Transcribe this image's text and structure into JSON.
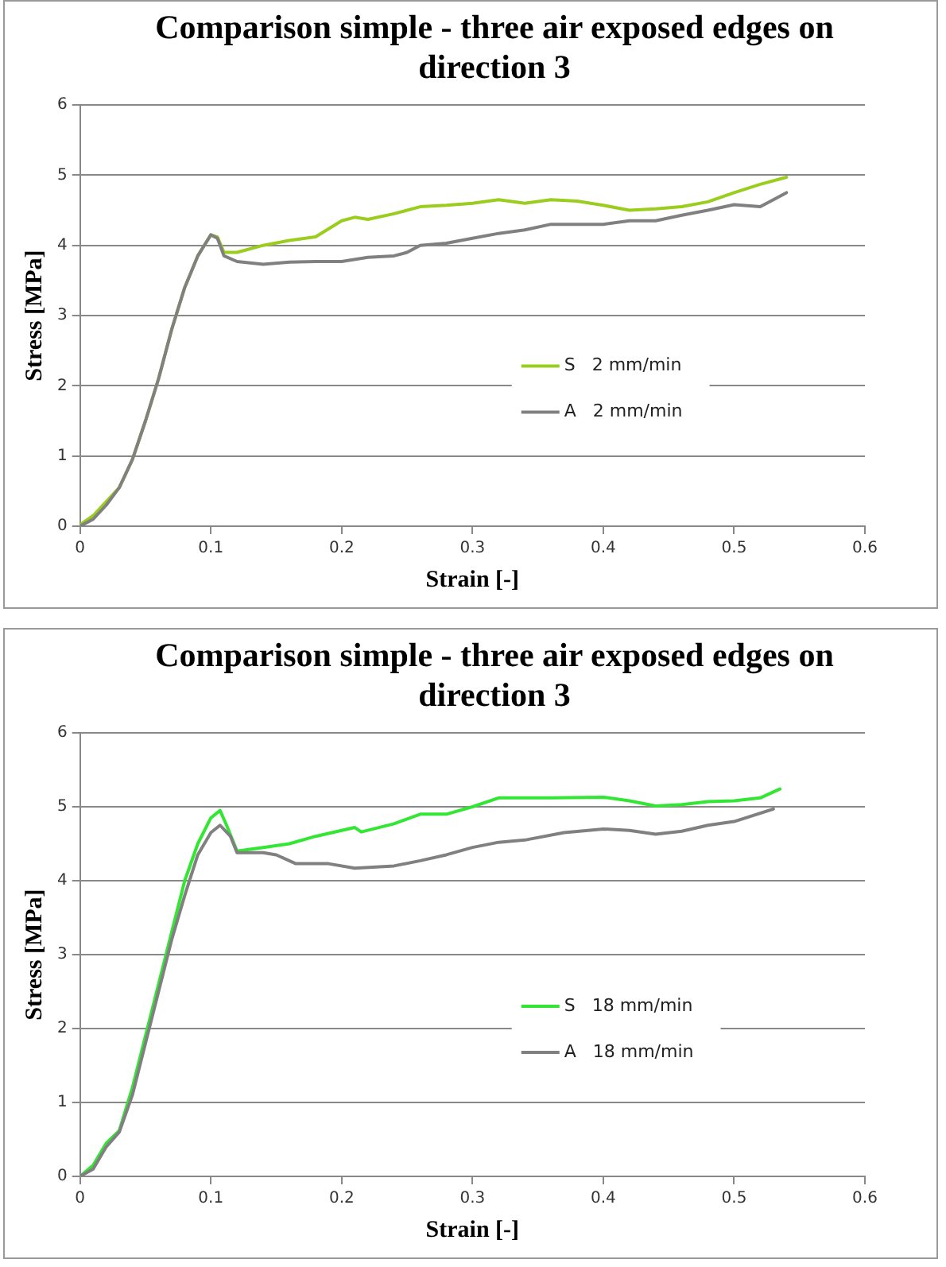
{
  "chart_data": [
    {
      "type": "line",
      "title": "Comparison simple - three air exposed edges on direction 3",
      "xlabel": "Strain [-]",
      "ylabel": "Stress [MPa]",
      "xlim": [
        0,
        0.6
      ],
      "xticks": [
        0,
        0.1,
        0.2,
        0.3,
        0.4,
        0.5,
        0.6
      ],
      "ylim": [
        0,
        6
      ],
      "yticks": [
        0,
        1,
        2,
        3,
        4,
        5,
        6
      ],
      "grid": "y",
      "legend": "right",
      "marker": "none",
      "line_style": "solid",
      "series": [
        {
          "name": "S   2 mm/min",
          "color": "#9acd1e",
          "x": [
            0,
            0.01,
            0.02,
            0.03,
            0.04,
            0.05,
            0.06,
            0.07,
            0.08,
            0.09,
            0.1,
            0.105,
            0.11,
            0.12,
            0.14,
            0.16,
            0.18,
            0.2,
            0.21,
            0.22,
            0.24,
            0.26,
            0.28,
            0.3,
            0.32,
            0.34,
            0.36,
            0.38,
            0.4,
            0.42,
            0.44,
            0.46,
            0.48,
            0.5,
            0.52,
            0.54
          ],
          "values": [
            0.02,
            0.15,
            0.35,
            0.55,
            0.95,
            1.5,
            2.1,
            2.8,
            3.4,
            3.85,
            4.15,
            4.12,
            3.9,
            3.9,
            4.0,
            4.07,
            4.12,
            4.35,
            4.4,
            4.37,
            4.45,
            4.55,
            4.57,
            4.6,
            4.65,
            4.6,
            4.65,
            4.63,
            4.57,
            4.5,
            4.52,
            4.55,
            4.62,
            4.75,
            4.87,
            4.97
          ]
        },
        {
          "name": "A   2 mm/min",
          "color": "#808080",
          "x": [
            0,
            0.01,
            0.02,
            0.03,
            0.04,
            0.05,
            0.06,
            0.07,
            0.08,
            0.09,
            0.1,
            0.105,
            0.11,
            0.12,
            0.14,
            0.16,
            0.18,
            0.2,
            0.22,
            0.24,
            0.25,
            0.26,
            0.28,
            0.3,
            0.32,
            0.34,
            0.36,
            0.38,
            0.4,
            0.42,
            0.44,
            0.46,
            0.48,
            0.5,
            0.52,
            0.54
          ],
          "values": [
            0,
            0.1,
            0.3,
            0.55,
            0.95,
            1.5,
            2.1,
            2.8,
            3.4,
            3.85,
            4.15,
            4.1,
            3.85,
            3.77,
            3.73,
            3.76,
            3.77,
            3.77,
            3.83,
            3.85,
            3.9,
            4.0,
            4.03,
            4.1,
            4.17,
            4.22,
            4.3,
            4.3,
            4.3,
            4.35,
            4.35,
            4.43,
            4.5,
            4.58,
            4.55,
            4.75
          ]
        }
      ]
    },
    {
      "type": "line",
      "title": "Comparison simple - three air exposed edges on direction 3",
      "xlabel": "Strain [-]",
      "ylabel": "Stress [MPa]",
      "xlim": [
        0,
        0.6
      ],
      "xticks": [
        0,
        0.1,
        0.2,
        0.3,
        0.4,
        0.5,
        0.6
      ],
      "ylim": [
        0,
        6
      ],
      "yticks": [
        0,
        1,
        2,
        3,
        4,
        5,
        6
      ],
      "grid": "y",
      "legend": "right",
      "marker": "none",
      "line_style": "solid",
      "series": [
        {
          "name": "S   18 mm/min",
          "color": "#33e633",
          "x": [
            0,
            0.01,
            0.02,
            0.03,
            0.04,
            0.05,
            0.06,
            0.07,
            0.08,
            0.09,
            0.1,
            0.107,
            0.112,
            0.12,
            0.14,
            0.16,
            0.18,
            0.2,
            0.21,
            0.215,
            0.24,
            0.26,
            0.28,
            0.3,
            0.32,
            0.36,
            0.4,
            0.42,
            0.44,
            0.46,
            0.48,
            0.5,
            0.52,
            0.535
          ],
          "values": [
            0,
            0.15,
            0.45,
            0.62,
            1.2,
            1.9,
            2.6,
            3.3,
            4.0,
            4.5,
            4.85,
            4.95,
            4.75,
            4.4,
            4.45,
            4.5,
            4.6,
            4.68,
            4.72,
            4.66,
            4.77,
            4.9,
            4.9,
            5.0,
            5.12,
            5.12,
            5.13,
            5.08,
            5.01,
            5.03,
            5.07,
            5.08,
            5.12,
            5.24
          ]
        },
        {
          "name": "A   18 mm/min",
          "color": "#808080",
          "x": [
            0,
            0.01,
            0.02,
            0.03,
            0.04,
            0.05,
            0.06,
            0.07,
            0.08,
            0.09,
            0.1,
            0.107,
            0.115,
            0.12,
            0.14,
            0.15,
            0.165,
            0.19,
            0.21,
            0.24,
            0.26,
            0.28,
            0.3,
            0.32,
            0.34,
            0.37,
            0.4,
            0.42,
            0.44,
            0.46,
            0.48,
            0.5,
            0.53
          ],
          "values": [
            0,
            0.1,
            0.4,
            0.6,
            1.1,
            1.8,
            2.5,
            3.2,
            3.8,
            4.35,
            4.65,
            4.75,
            4.6,
            4.38,
            4.38,
            4.35,
            4.23,
            4.23,
            4.17,
            4.2,
            4.27,
            4.35,
            4.45,
            4.52,
            4.55,
            4.65,
            4.7,
            4.68,
            4.63,
            4.67,
            4.75,
            4.8,
            4.97
          ]
        }
      ]
    }
  ]
}
